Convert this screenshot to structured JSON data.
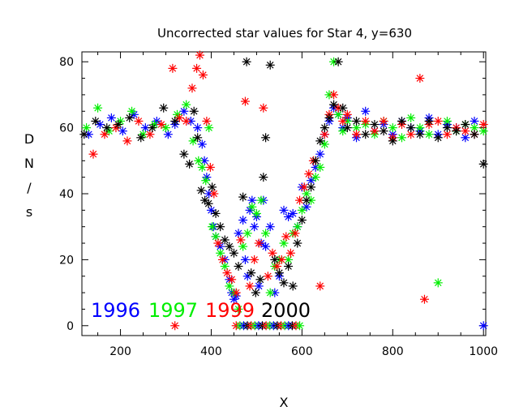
{
  "chart_data": {
    "type": "scatter",
    "marker": "asterisk",
    "title": "Uncorrected star values for Star 4, y=630",
    "xlabel": "X",
    "ylabel_letters": [
      "D",
      "N",
      "/",
      "s"
    ],
    "xlim": [
      115,
      1005
    ],
    "ylim": [
      -3,
      83
    ],
    "xticks": [
      200,
      400,
      600,
      800,
      1000
    ],
    "yticks": [
      0,
      20,
      40,
      60,
      80
    ],
    "xtick_labels": [
      "200",
      "400",
      "600",
      "800",
      "1000"
    ],
    "ytick_labels": [
      "0",
      "20",
      "40",
      "60",
      "80"
    ],
    "legend_placement": "lower-left",
    "series": [
      {
        "name": "1996",
        "color": "#0000ff",
        "points": [
          [
            130,
            58
          ],
          [
            155,
            61
          ],
          [
            180,
            63
          ],
          [
            205,
            59
          ],
          [
            230,
            64
          ],
          [
            255,
            60
          ],
          [
            280,
            62
          ],
          [
            305,
            58
          ],
          [
            320,
            61
          ],
          [
            340,
            65
          ],
          [
            355,
            62
          ],
          [
            370,
            60
          ],
          [
            380,
            55
          ],
          [
            385,
            50
          ],
          [
            390,
            45
          ],
          [
            395,
            40
          ],
          [
            400,
            35
          ],
          [
            405,
            30
          ],
          [
            410,
            27
          ],
          [
            420,
            24
          ],
          [
            430,
            20
          ],
          [
            440,
            14
          ],
          [
            445,
            10
          ],
          [
            450,
            8
          ],
          [
            455,
            9
          ],
          [
            460,
            28
          ],
          [
            470,
            32
          ],
          [
            475,
            20
          ],
          [
            480,
            15
          ],
          [
            485,
            35
          ],
          [
            490,
            38
          ],
          [
            495,
            30
          ],
          [
            500,
            33
          ],
          [
            505,
            12
          ],
          [
            510,
            25
          ],
          [
            515,
            38
          ],
          [
            520,
            24
          ],
          [
            530,
            30
          ],
          [
            540,
            10
          ],
          [
            550,
            15
          ],
          [
            560,
            35
          ],
          [
            570,
            33
          ],
          [
            580,
            34
          ],
          [
            590,
            30
          ],
          [
            600,
            42
          ],
          [
            610,
            36
          ],
          [
            620,
            44
          ],
          [
            630,
            48
          ],
          [
            640,
            52
          ],
          [
            650,
            58
          ],
          [
            660,
            62
          ],
          [
            670,
            66
          ],
          [
            680,
            64
          ],
          [
            690,
            60
          ],
          [
            700,
            63
          ],
          [
            720,
            57
          ],
          [
            740,
            65
          ],
          [
            760,
            59
          ],
          [
            780,
            61
          ],
          [
            800,
            58
          ],
          [
            820,
            62
          ],
          [
            840,
            60
          ],
          [
            860,
            59
          ],
          [
            880,
            63
          ],
          [
            900,
            58
          ],
          [
            920,
            61
          ],
          [
            940,
            60
          ],
          [
            960,
            57
          ],
          [
            980,
            62
          ],
          [
            1000,
            0
          ]
        ]
      },
      {
        "name": "1997",
        "color": "#00ee00",
        "points": [
          [
            125,
            60
          ],
          [
            150,
            66
          ],
          [
            175,
            59
          ],
          [
            200,
            62
          ],
          [
            225,
            65
          ],
          [
            250,
            58
          ],
          [
            275,
            61
          ],
          [
            300,
            60
          ],
          [
            325,
            64
          ],
          [
            345,
            67
          ],
          [
            360,
            56
          ],
          [
            372,
            50
          ],
          [
            380,
            48
          ],
          [
            388,
            44
          ],
          [
            395,
            60
          ],
          [
            402,
            30
          ],
          [
            410,
            27
          ],
          [
            420,
            22
          ],
          [
            430,
            18
          ],
          [
            440,
            12
          ],
          [
            450,
            10
          ],
          [
            460,
            5
          ],
          [
            470,
            24
          ],
          [
            480,
            28
          ],
          [
            490,
            36
          ],
          [
            500,
            34
          ],
          [
            510,
            38
          ],
          [
            520,
            28
          ],
          [
            530,
            10
          ],
          [
            540,
            18
          ],
          [
            550,
            20
          ],
          [
            560,
            25
          ],
          [
            570,
            20
          ],
          [
            580,
            28
          ],
          [
            590,
            30
          ],
          [
            600,
            35
          ],
          [
            610,
            40
          ],
          [
            620,
            38
          ],
          [
            630,
            45
          ],
          [
            640,
            48
          ],
          [
            650,
            55
          ],
          [
            660,
            70
          ],
          [
            670,
            80
          ],
          [
            680,
            64
          ],
          [
            690,
            59
          ],
          [
            700,
            62
          ],
          [
            720,
            60
          ],
          [
            740,
            61
          ],
          [
            760,
            58
          ],
          [
            780,
            62
          ],
          [
            800,
            60
          ],
          [
            820,
            57
          ],
          [
            840,
            63
          ],
          [
            860,
            60
          ],
          [
            880,
            58
          ],
          [
            900,
            13
          ],
          [
            920,
            62
          ],
          [
            940,
            59
          ],
          [
            960,
            61
          ],
          [
            980,
            60
          ],
          [
            1000,
            59
          ]
        ]
      },
      {
        "name": "1999",
        "color": "#ff0000",
        "points": [
          [
            140,
            52
          ],
          [
            165,
            58
          ],
          [
            190,
            60
          ],
          [
            215,
            56
          ],
          [
            240,
            62
          ],
          [
            265,
            58
          ],
          [
            290,
            61
          ],
          [
            315,
            78
          ],
          [
            330,
            63
          ],
          [
            345,
            62
          ],
          [
            358,
            72
          ],
          [
            368,
            78
          ],
          [
            375,
            82
          ],
          [
            382,
            76
          ],
          [
            390,
            62
          ],
          [
            398,
            48
          ],
          [
            406,
            40
          ],
          [
            415,
            25
          ],
          [
            425,
            20
          ],
          [
            435,
            16
          ],
          [
            445,
            14
          ],
          [
            455,
            10
          ],
          [
            465,
            26
          ],
          [
            475,
            68
          ],
          [
            485,
            12
          ],
          [
            495,
            20
          ],
          [
            505,
            25
          ],
          [
            515,
            66
          ],
          [
            525,
            15
          ],
          [
            535,
            22
          ],
          [
            545,
            18
          ],
          [
            555,
            20
          ],
          [
            565,
            27
          ],
          [
            575,
            22
          ],
          [
            585,
            28
          ],
          [
            595,
            38
          ],
          [
            605,
            42
          ],
          [
            615,
            46
          ],
          [
            625,
            50
          ],
          [
            640,
            12
          ],
          [
            650,
            58
          ],
          [
            660,
            64
          ],
          [
            670,
            70
          ],
          [
            680,
            66
          ],
          [
            690,
            62
          ],
          [
            700,
            64
          ],
          [
            720,
            58
          ],
          [
            740,
            62
          ],
          [
            760,
            59
          ],
          [
            780,
            62
          ],
          [
            800,
            57
          ],
          [
            820,
            61
          ],
          [
            840,
            58
          ],
          [
            860,
            75
          ],
          [
            870,
            8
          ],
          [
            880,
            61
          ],
          [
            900,
            62
          ],
          [
            920,
            58
          ],
          [
            940,
            60
          ],
          [
            960,
            59
          ],
          [
            980,
            58
          ],
          [
            1000,
            61
          ],
          [
            320,
            0
          ]
        ]
      },
      {
        "name": "2000",
        "color": "#000000",
        "points": [
          [
            120,
            58
          ],
          [
            145,
            62
          ],
          [
            170,
            60
          ],
          [
            195,
            61
          ],
          [
            220,
            63
          ],
          [
            245,
            57
          ],
          [
            270,
            60
          ],
          [
            295,
            66
          ],
          [
            320,
            62
          ],
          [
            340,
            52
          ],
          [
            352,
            49
          ],
          [
            362,
            65
          ],
          [
            370,
            57
          ],
          [
            378,
            41
          ],
          [
            386,
            38
          ],
          [
            394,
            37
          ],
          [
            402,
            42
          ],
          [
            410,
            34
          ],
          [
            420,
            30
          ],
          [
            430,
            26
          ],
          [
            440,
            24
          ],
          [
            450,
            22
          ],
          [
            460,
            18
          ],
          [
            470,
            39
          ],
          [
            478,
            80
          ],
          [
            488,
            16
          ],
          [
            498,
            10
          ],
          [
            508,
            14
          ],
          [
            515,
            45
          ],
          [
            520,
            57
          ],
          [
            530,
            79
          ],
          [
            540,
            20
          ],
          [
            550,
            16
          ],
          [
            560,
            13
          ],
          [
            570,
            18
          ],
          [
            580,
            12
          ],
          [
            590,
            25
          ],
          [
            600,
            32
          ],
          [
            610,
            38
          ],
          [
            620,
            42
          ],
          [
            630,
            50
          ],
          [
            640,
            56
          ],
          [
            650,
            60
          ],
          [
            660,
            63
          ],
          [
            670,
            67
          ],
          [
            680,
            80
          ],
          [
            690,
            66
          ],
          [
            700,
            60
          ],
          [
            720,
            62
          ],
          [
            740,
            58
          ],
          [
            760,
            61
          ],
          [
            780,
            59
          ],
          [
            800,
            56
          ],
          [
            820,
            62
          ],
          [
            840,
            60
          ],
          [
            860,
            58
          ],
          [
            880,
            62
          ],
          [
            900,
            57
          ],
          [
            920,
            60
          ],
          [
            940,
            59
          ],
          [
            960,
            61
          ],
          [
            980,
            58
          ],
          [
            1000,
            49
          ]
        ]
      }
    ],
    "zero_floor": {
      "x_range": [
        455,
        595
      ],
      "count": 18,
      "colors": [
        "#ff0000",
        "#00ee00",
        "#0000ff",
        "#000000"
      ]
    }
  }
}
